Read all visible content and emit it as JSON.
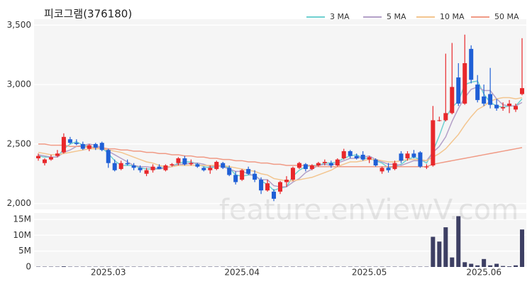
{
  "chart_data": {
    "type": "candlestick",
    "title": "피코그램(376180)",
    "watermark": "feature.enViewV.com",
    "up_color": "#e8282b",
    "down_color": "#1f5fd6",
    "grid": true,
    "legend": "top-right",
    "categories": [
      null,
      null,
      null,
      null,
      null,
      null,
      null,
      null,
      null,
      null,
      null,
      "2025.03",
      null,
      null,
      null,
      null,
      null,
      null,
      null,
      null,
      null,
      null,
      null,
      null,
      null,
      null,
      null,
      null,
      null,
      null,
      null,
      null,
      "2025.04",
      null,
      null,
      null,
      null,
      null,
      null,
      null,
      null,
      null,
      null,
      null,
      null,
      null,
      null,
      null,
      null,
      null,
      null,
      null,
      "2025.05",
      null,
      null,
      null,
      null,
      null,
      null,
      null,
      null,
      null,
      null,
      null,
      null,
      null,
      null,
      null,
      null,
      null,
      "2025.06",
      null,
      null,
      null,
      null,
      null,
      null
    ],
    "ohlc": [
      [
        2380,
        2420,
        2360,
        2400
      ],
      [
        2340,
        2380,
        2320,
        2370
      ],
      [
        2370,
        2410,
        2360,
        2390
      ],
      [
        2400,
        2450,
        2390,
        2420
      ],
      [
        2430,
        2590,
        2420,
        2560
      ],
      [
        2540,
        2560,
        2500,
        2510
      ],
      [
        2510,
        2540,
        2490,
        2500
      ],
      [
        2500,
        2520,
        2450,
        2460
      ],
      [
        2460,
        2500,
        2440,
        2490
      ],
      [
        2500,
        2510,
        2450,
        2470
      ],
      [
        2510,
        2520,
        2440,
        2450
      ],
      [
        2450,
        2460,
        2300,
        2340
      ],
      [
        2340,
        2370,
        2270,
        2280
      ],
      [
        2290,
        2360,
        2280,
        2340
      ],
      [
        2340,
        2370,
        2320,
        2330
      ],
      [
        2320,
        2340,
        2280,
        2300
      ],
      [
        2300,
        2320,
        2260,
        2280
      ],
      [
        2250,
        2300,
        2230,
        2280
      ],
      [
        2280,
        2330,
        2260,
        2310
      ],
      [
        2310,
        2330,
        2290,
        2290
      ],
      [
        2280,
        2330,
        2270,
        2320
      ],
      [
        2320,
        2340,
        2310,
        2330
      ],
      [
        2340,
        2390,
        2320,
        2380
      ],
      [
        2380,
        2400,
        2320,
        2330
      ],
      [
        2330,
        2370,
        2320,
        2340
      ],
      [
        2330,
        2340,
        2300,
        2310
      ],
      [
        2300,
        2310,
        2270,
        2280
      ],
      [
        2280,
        2320,
        2250,
        2300
      ],
      [
        2290,
        2360,
        2280,
        2350
      ],
      [
        2340,
        2350,
        2290,
        2300
      ],
      [
        2300,
        2320,
        2230,
        2240
      ],
      [
        2240,
        2270,
        2160,
        2180
      ],
      [
        2200,
        2290,
        2190,
        2280
      ],
      [
        2290,
        2310,
        2240,
        2250
      ],
      [
        2250,
        2280,
        2180,
        2200
      ],
      [
        2200,
        2220,
        2080,
        2110
      ],
      [
        2110,
        2200,
        2100,
        2170
      ],
      [
        2100,
        2120,
        2020,
        2040
      ],
      [
        2100,
        2190,
        2080,
        2180
      ],
      [
        2180,
        2230,
        2140,
        2200
      ],
      [
        2200,
        2310,
        2190,
        2300
      ],
      [
        2300,
        2350,
        2290,
        2340
      ],
      [
        2330,
        2340,
        2270,
        2290
      ],
      [
        2290,
        2330,
        2280,
        2320
      ],
      [
        2320,
        2350,
        2310,
        2340
      ],
      [
        2340,
        2370,
        2320,
        2350
      ],
      [
        2340,
        2360,
        2300,
        2320
      ],
      [
        2320,
        2380,
        2310,
        2370
      ],
      [
        2380,
        2460,
        2370,
        2440
      ],
      [
        2440,
        2450,
        2380,
        2400
      ],
      [
        2400,
        2420,
        2370,
        2380
      ],
      [
        2410,
        2440,
        2360,
        2370
      ],
      [
        2370,
        2400,
        2340,
        2390
      ],
      [
        2370,
        2380,
        2310,
        2320
      ],
      [
        2270,
        2310,
        2250,
        2300
      ],
      [
        2300,
        2340,
        2260,
        2280
      ],
      [
        2290,
        2360,
        2280,
        2340
      ],
      [
        2420,
        2440,
        2340,
        2360
      ],
      [
        2380,
        2440,
        2360,
        2420
      ],
      [
        2420,
        2450,
        2380,
        2390
      ],
      [
        2430,
        2440,
        2300,
        2310
      ],
      [
        2310,
        2330,
        2290,
        2310
      ],
      [
        2320,
        2820,
        2310,
        2700
      ],
      [
        2700,
        2730,
        2690,
        2700
      ],
      [
        2700,
        3260,
        2690,
        2760
      ],
      [
        2760,
        3350,
        2750,
        2980
      ],
      [
        3060,
        3180,
        2820,
        2840
      ],
      [
        2840,
        3420,
        2830,
        3180
      ],
      [
        3300,
        3330,
        3010,
        3040
      ],
      [
        3000,
        3080,
        2850,
        2870
      ],
      [
        2900,
        3000,
        2820,
        2840
      ],
      [
        2920,
        3140,
        2800,
        2830
      ],
      [
        2830,
        2880,
        2780,
        2800
      ],
      [
        2800,
        2850,
        2780,
        2810
      ],
      [
        2820,
        2870,
        2760,
        2840
      ],
      [
        2790,
        2840,
        2770,
        2820
      ],
      [
        2920,
        3390,
        2910,
        2970
      ]
    ],
    "ylim": [
      1950,
      3550
    ],
    "yticks": [
      {
        "value": 2000,
        "label": "2,000"
      },
      {
        "value": 2500,
        "label": "2,500"
      },
      {
        "value": 3000,
        "label": "3,000"
      },
      {
        "value": 3500,
        "label": "3,500"
      }
    ],
    "series": [
      {
        "name": "3 MA",
        "color": "#6fd0d0",
        "values": [
          2400,
          2390,
          2390,
          2390,
          2460,
          2500,
          2520,
          2490,
          2480,
          2470,
          2470,
          2420,
          2360,
          2320,
          2320,
          2320,
          2300,
          2290,
          2290,
          2290,
          2310,
          2310,
          2340,
          2350,
          2350,
          2330,
          2310,
          2300,
          2310,
          2320,
          2300,
          2240,
          2230,
          2240,
          2240,
          2190,
          2160,
          2110,
          2130,
          2140,
          2230,
          2280,
          2310,
          2320,
          2320,
          2340,
          2340,
          2350,
          2380,
          2400,
          2410,
          2380,
          2380,
          2360,
          2340,
          2300,
          2310,
          2330,
          2370,
          2390,
          2370,
          2340,
          2440,
          2570,
          2720,
          2810,
          2860,
          3000,
          3020,
          3030,
          2920,
          2850,
          2820,
          2810,
          2820,
          2820,
          2880
        ]
      },
      {
        "name": "5 MA",
        "color": "#b3a0c8",
        "values": [
          2410,
          2400,
          2390,
          2390,
          2430,
          2450,
          2480,
          2490,
          2500,
          2490,
          2470,
          2440,
          2410,
          2380,
          2350,
          2320,
          2310,
          2310,
          2300,
          2290,
          2300,
          2310,
          2330,
          2330,
          2340,
          2340,
          2330,
          2310,
          2320,
          2310,
          2290,
          2270,
          2270,
          2250,
          2230,
          2200,
          2200,
          2150,
          2140,
          2140,
          2180,
          2210,
          2260,
          2290,
          2320,
          2330,
          2320,
          2340,
          2360,
          2380,
          2380,
          2390,
          2400,
          2370,
          2350,
          2330,
          2330,
          2320,
          2340,
          2360,
          2360,
          2360,
          2430,
          2480,
          2560,
          2690,
          2800,
          2890,
          2960,
          2980,
          2950,
          2950,
          2880,
          2830,
          2820,
          2820,
          2850
        ]
      },
      {
        "name": "10 MA",
        "color": "#f3c58f",
        "values": [
          2430,
          2420,
          2410,
          2410,
          2420,
          2430,
          2440,
          2450,
          2460,
          2460,
          2460,
          2450,
          2440,
          2430,
          2410,
          2390,
          2370,
          2350,
          2340,
          2320,
          2310,
          2310,
          2320,
          2320,
          2320,
          2320,
          2320,
          2320,
          2320,
          2320,
          2310,
          2300,
          2290,
          2280,
          2270,
          2250,
          2240,
          2210,
          2200,
          2190,
          2190,
          2200,
          2210,
          2220,
          2240,
          2260,
          2280,
          2310,
          2330,
          2350,
          2350,
          2360,
          2370,
          2370,
          2360,
          2350,
          2350,
          2360,
          2370,
          2370,
          2370,
          2360,
          2390,
          2420,
          2460,
          2520,
          2580,
          2660,
          2730,
          2790,
          2820,
          2860,
          2880,
          2890,
          2890,
          2880,
          2890
        ]
      },
      {
        "name": "50 MA",
        "color": "#f09a85",
        "values": [
          2500,
          2500,
          2490,
          2490,
          2490,
          2480,
          2480,
          2480,
          2470,
          2470,
          2470,
          2460,
          2460,
          2450,
          2450,
          2440,
          2440,
          2430,
          2430,
          2420,
          2420,
          2410,
          2410,
          2400,
          2400,
          2390,
          2390,
          2380,
          2380,
          2370,
          2370,
          2360,
          2360,
          2350,
          2350,
          2340,
          2340,
          2330,
          2330,
          2320,
          2320,
          2320,
          2320,
          2320,
          2310,
          2310,
          2310,
          2310,
          2310,
          2310,
          2310,
          2310,
          2310,
          2310,
          2310,
          2310,
          2310,
          2310,
          2310,
          2310,
          2310,
          2310,
          2330,
          2340,
          2350,
          2360,
          2370,
          2380,
          2390,
          2400,
          2410,
          2420,
          2430,
          2440,
          2450,
          2460,
          2470
        ]
      }
    ],
    "volume": {
      "color": "#3d3f63",
      "ylim": [
        0,
        17000000
      ],
      "yticks": [
        0,
        {
          "value": 5000000,
          "label": "5M"
        },
        {
          "value": 10000000,
          "label": "10M"
        },
        {
          "value": 15000000,
          "label": "15M"
        }
      ],
      "values": [
        100000,
        100000,
        100000,
        100000,
        200000,
        100000,
        100000,
        100000,
        100000,
        100000,
        100000,
        100000,
        100000,
        100000,
        100000,
        100000,
        100000,
        100000,
        100000,
        100000,
        100000,
        100000,
        100000,
        100000,
        100000,
        100000,
        100000,
        100000,
        100000,
        100000,
        100000,
        100000,
        100000,
        100000,
        100000,
        100000,
        100000,
        100000,
        100000,
        100000,
        100000,
        100000,
        100000,
        100000,
        100000,
        100000,
        100000,
        100000,
        100000,
        100000,
        100000,
        100000,
        100000,
        100000,
        100000,
        100000,
        100000,
        100000,
        100000,
        100000,
        100000,
        100000,
        9500000,
        8000000,
        12500000,
        3000000,
        16000000,
        1500000,
        1000000,
        500000,
        2500000,
        500000,
        1000000,
        300000,
        200000,
        500000,
        11800000
      ]
    }
  }
}
